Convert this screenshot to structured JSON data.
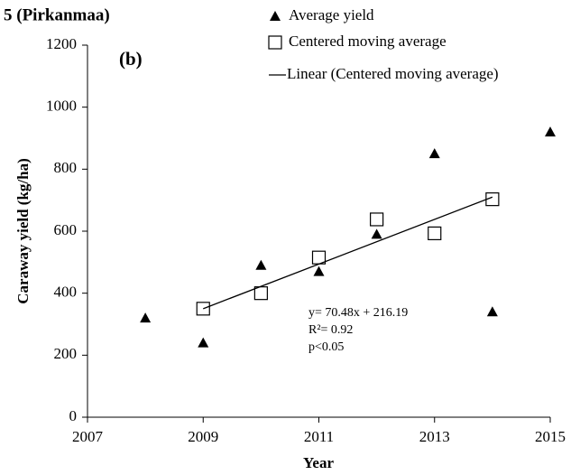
{
  "chart_data": {
    "type": "scatter",
    "title": "5 (Pirkanmaa)",
    "panel_label": "(b)",
    "x_label": "Year",
    "y_label": "Caraway yield (kg/ha)",
    "xlim": [
      2007,
      2015
    ],
    "xticks": [
      2007,
      2009,
      2011,
      2013,
      2015
    ],
    "ylim": [
      0,
      1200
    ],
    "yticks": [
      0,
      200,
      400,
      600,
      800,
      1000,
      1200
    ],
    "series": [
      {
        "name": "Average yield",
        "color": "#000000",
        "marker": "triangle",
        "x": [
          2008,
          2009,
          2010,
          2011,
          2012,
          2013,
          2014,
          2015
        ],
        "values": [
          320,
          240,
          490,
          470,
          590,
          850,
          340,
          920
        ]
      },
      {
        "name": "Centered moving average",
        "color": "#000000",
        "marker": "square",
        "x": [
          2009,
          2010,
          2011,
          2012,
          2013,
          2014
        ],
        "values": [
          350,
          400,
          515,
          638,
          593,
          703
        ]
      },
      {
        "name": "Linear (Centered moving average)",
        "color": "#000000",
        "marker": "line",
        "x": [
          2009,
          2014
        ],
        "values": [
          350,
          710
        ]
      }
    ],
    "annotations": [
      "y= 70.48x + 216.19",
      "R²= 0.92",
      "p<0.05"
    ]
  }
}
